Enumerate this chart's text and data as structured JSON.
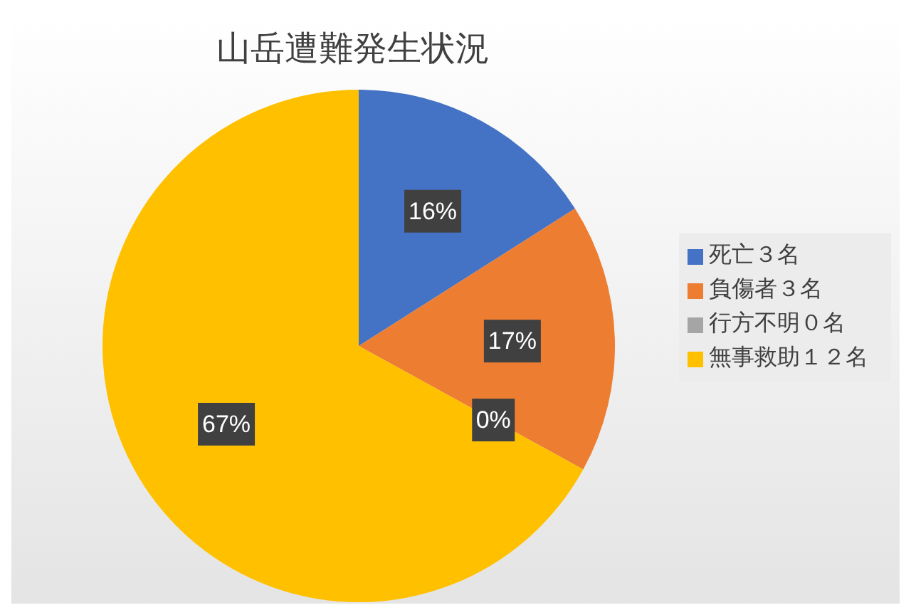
{
  "chart_data": {
    "type": "pie",
    "title": "山岳遭難発生状況",
    "categories": [
      "死亡３名",
      "負傷者３名",
      "行方不明０名",
      "無事救助１２名"
    ],
    "values": [
      16,
      17,
      0,
      67
    ],
    "value_labels": [
      "16%",
      "17%",
      "0%",
      "67%"
    ],
    "colors": [
      "#4472c4",
      "#ed7d31",
      "#a5a5a5",
      "#ffc000"
    ],
    "legend": "right"
  }
}
